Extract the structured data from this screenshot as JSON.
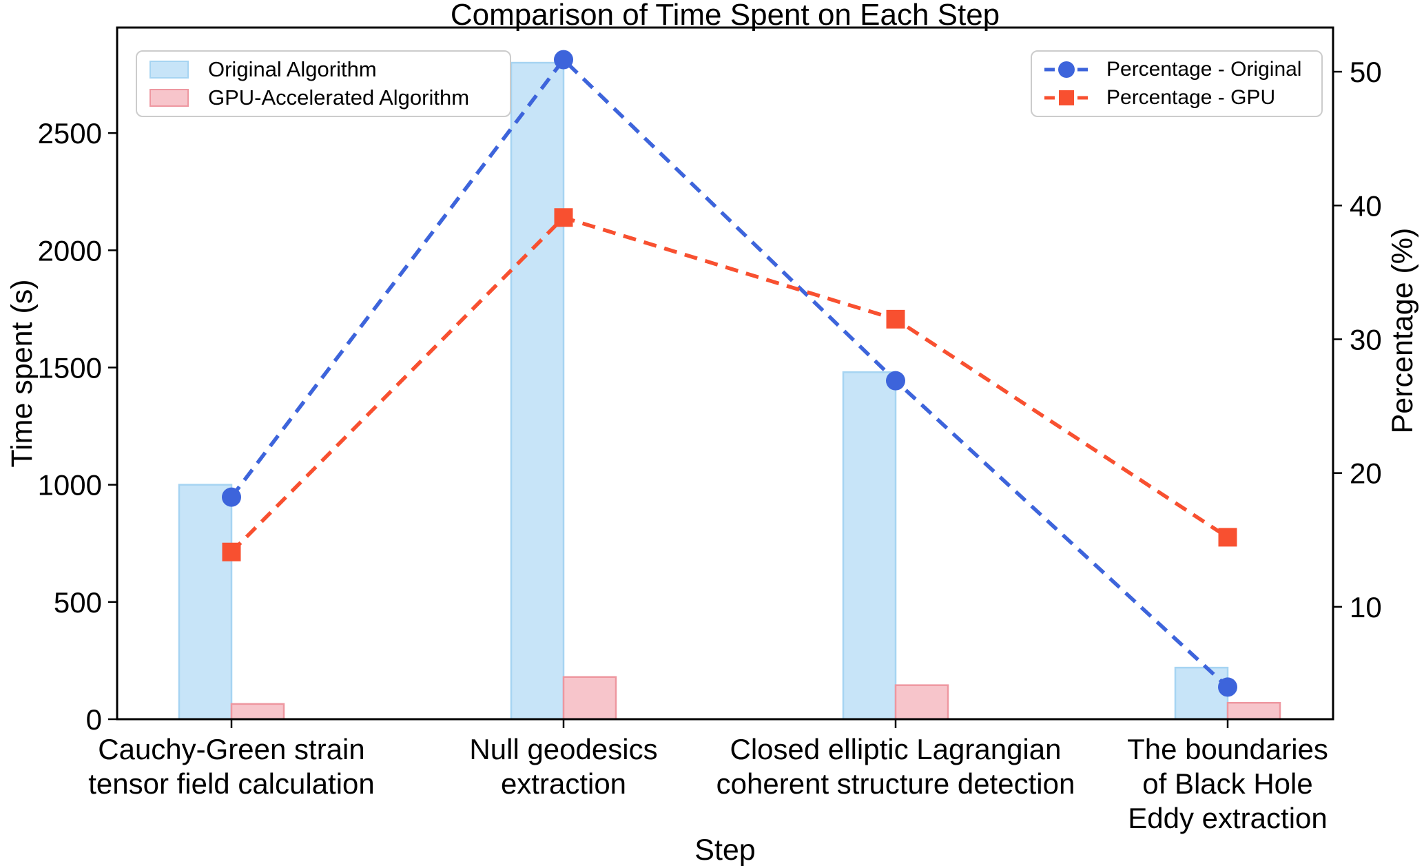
{
  "title": "Comparison of Time Spent on Each Step",
  "axes": {
    "x_label": "Step",
    "y_left_label": "Time spent (s)",
    "y_right_label": "Percentage (%)"
  },
  "legends": {
    "bars": [
      {
        "label": "Original Algorithm",
        "fill": "#C7E4F8",
        "edge": "#A6D4F2"
      },
      {
        "label": "GPU-Accelerated Algorithm",
        "fill": "#F7C5CB",
        "edge": "#EE97A0"
      }
    ],
    "lines": [
      {
        "label": "Percentage - Original",
        "color": "#3D64DB",
        "marker": "circle"
      },
      {
        "label": "Percentage - GPU",
        "color": "#F85030",
        "marker": "square"
      }
    ]
  },
  "chart_data": {
    "type": "bar",
    "categories": [
      "Cauchy-Green strain tensor field calculation",
      "Null geodesics extraction",
      "Closed elliptic Lagrangian coherent structure detection",
      "The boundaries of Black Hole Eddy extraction"
    ],
    "categories_lines": [
      [
        "Cauchy-Green strain",
        "tensor field calculation"
      ],
      [
        "Null geodesics",
        "extraction"
      ],
      [
        "Closed elliptic Lagrangian",
        "coherent structure detection"
      ],
      [
        "The boundaries",
        "of Black Hole",
        "Eddy extraction"
      ]
    ],
    "series": [
      {
        "name": "Original Algorithm",
        "type": "bar",
        "axis": "left",
        "values": [
          1000,
          2800,
          1480,
          220
        ],
        "fill": "#C7E4F8",
        "edge": "#A6D4F2"
      },
      {
        "name": "GPU-Accelerated Algorithm",
        "type": "bar",
        "axis": "left",
        "values": [
          65,
          180,
          145,
          70
        ],
        "fill": "#F7C5CB",
        "edge": "#EE97A0"
      },
      {
        "name": "Percentage - Original",
        "type": "line",
        "axis": "right",
        "values": [
          18.2,
          50.9,
          26.9,
          4.0
        ],
        "color": "#3D64DB",
        "marker": "circle"
      },
      {
        "name": "Percentage - GPU",
        "type": "line",
        "axis": "right",
        "values": [
          14.1,
          39.1,
          31.5,
          15.2
        ],
        "color": "#F85030",
        "marker": "square"
      }
    ],
    "left_axis": {
      "label": "Time spent (s)",
      "ticks": [
        0,
        500,
        1000,
        1500,
        2000,
        2500
      ],
      "range": [
        0,
        2950
      ]
    },
    "right_axis": {
      "label": "Percentage (%)",
      "ticks": [
        10,
        20,
        30,
        40,
        50
      ],
      "range": [
        1.6,
        53.3
      ]
    },
    "x_axis": {
      "label": "Step"
    },
    "grid": false,
    "legend_positions": [
      "upper left",
      "upper right"
    ]
  }
}
